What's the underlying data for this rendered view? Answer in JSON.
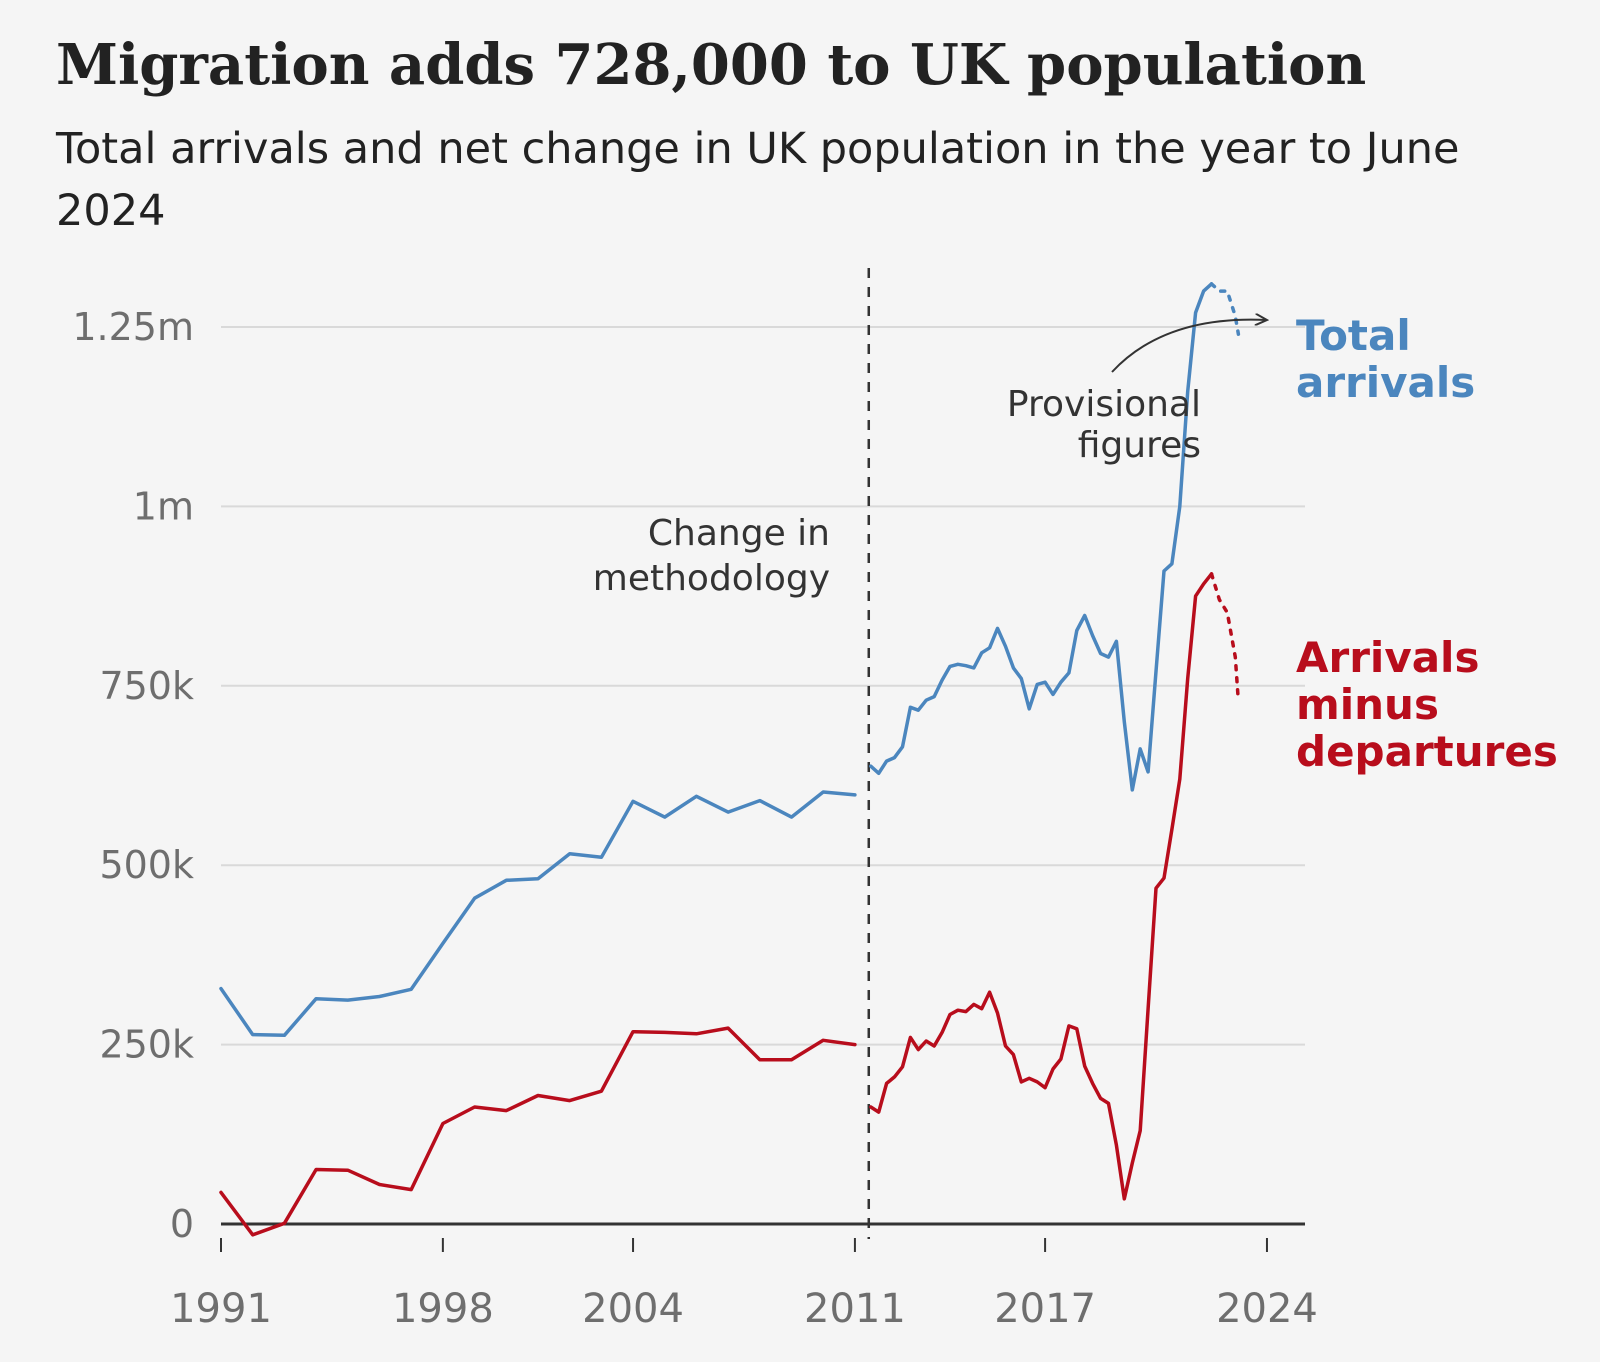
{
  "header": {
    "title": "Migration adds 728,000 to UK population",
    "subtitle": "Total arrivals and net change in UK population in the year to June 2024"
  },
  "annotations": {
    "methodology": [
      "Change in",
      "methodology"
    ],
    "provisional": [
      "Provisional",
      "figures"
    ]
  },
  "colors": {
    "arrivals": "#4b86be",
    "net": "#b80d1c",
    "grid": "#d9d9d9",
    "axis": "#333333",
    "background": "#f5f5f5"
  },
  "chart_data": {
    "type": "line",
    "title": "Migration adds 728,000 to UK population",
    "subtitle": "Total arrivals and net change in UK population in the year to June 2024",
    "xlabel": "",
    "ylabel": "",
    "xlim": [
      1991,
      2025.2
    ],
    "ylim": [
      0,
      1250000
    ],
    "xticks": [
      1991,
      1998,
      2004,
      2011,
      2017,
      2024
    ],
    "xtick_labels": [
      "1991",
      "1998",
      "2004",
      "2011",
      "2017",
      "2024"
    ],
    "yticks": [
      0,
      250000,
      500000,
      750000,
      1000000,
      1250000
    ],
    "ytick_labels": [
      "0",
      "250k",
      "500k",
      "750k",
      "1m",
      "1.25m"
    ],
    "grid": true,
    "methodology_break_x": 2011.5,
    "series": [
      {
        "name": "Total arrivals",
        "legend_lines": [
          "Total",
          "arrivals"
        ],
        "color": "#4b86be",
        "segments": [
          {
            "style": "solid",
            "points": [
              [
                1991,
                328000
              ],
              [
                1992,
                264000
              ],
              [
                1993,
                263000
              ],
              [
                1994,
                314000
              ],
              [
                1995,
                312000
              ],
              [
                1996,
                317000
              ],
              [
                1997,
                327000
              ],
              [
                1998,
                391000
              ],
              [
                1999,
                454000
              ],
              [
                2000,
                479000
              ],
              [
                2001,
                481000
              ],
              [
                2002,
                516000
              ],
              [
                2003,
                511000
              ],
              [
                2004,
                589000
              ],
              [
                2005,
                567000
              ],
              [
                2006,
                596000
              ],
              [
                2007,
                574000
              ],
              [
                2008,
                590000
              ],
              [
                2009,
                567000
              ],
              [
                2010,
                602000
              ],
              [
                2011,
                598000
              ]
            ]
          },
          {
            "style": "solid",
            "points": [
              [
                2011.5,
                638000
              ],
              [
                2011.75,
                628000
              ],
              [
                2012,
                645000
              ],
              [
                2012.25,
                650000
              ],
              [
                2012.5,
                665000
              ],
              [
                2012.75,
                720000
              ],
              [
                2013,
                716000
              ],
              [
                2013.25,
                730000
              ],
              [
                2013.5,
                735000
              ],
              [
                2013.75,
                758000
              ],
              [
                2014,
                777000
              ],
              [
                2014.25,
                780000
              ],
              [
                2014.5,
                778000
              ],
              [
                2014.75,
                775000
              ],
              [
                2015,
                796000
              ],
              [
                2015.25,
                803000
              ],
              [
                2015.5,
                830000
              ],
              [
                2015.75,
                805000
              ],
              [
                2016,
                775000
              ],
              [
                2016.25,
                760000
              ],
              [
                2016.5,
                718000
              ],
              [
                2016.75,
                752000
              ],
              [
                2017,
                755000
              ],
              [
                2017.25,
                738000
              ],
              [
                2017.5,
                755000
              ],
              [
                2017.75,
                768000
              ],
              [
                2018,
                827000
              ],
              [
                2018.25,
                848000
              ],
              [
                2018.5,
                820000
              ],
              [
                2018.75,
                795000
              ],
              [
                2019,
                790000
              ],
              [
                2019.25,
                812000
              ],
              [
                2019.5,
                700000
              ],
              [
                2019.75,
                605000
              ],
              [
                2020,
                662000
              ],
              [
                2020.25,
                630000
              ],
              [
                2020.5,
                770000
              ],
              [
                2020.75,
                910000
              ],
              [
                2021,
                920000
              ],
              [
                2021.25,
                1000000
              ],
              [
                2021.5,
                1160000
              ],
              [
                2021.75,
                1270000
              ],
              [
                2022,
                1300000
              ],
              [
                2022.25,
                1310000
              ]
            ]
          },
          {
            "style": "dotted",
            "points": [
              [
                2022.25,
                1310000
              ],
              [
                2022.5,
                1300000
              ],
              [
                2022.75,
                1300000
              ],
              [
                2023,
                1265000
              ],
              [
                2023.1,
                1240000
              ]
            ]
          }
        ]
      },
      {
        "name": "Arrivals minus departures",
        "legend_lines": [
          "Arrivals",
          "minus",
          "departures"
        ],
        "color": "#b80d1c",
        "segments": [
          {
            "style": "solid",
            "points": [
              [
                1991,
                44000
              ],
              [
                1992,
                -15000
              ],
              [
                1993,
                1000
              ],
              [
                1994,
                76000
              ],
              [
                1995,
                75000
              ],
              [
                1996,
                55000
              ],
              [
                1997,
                48000
              ],
              [
                1998,
                140000
              ],
              [
                1999,
                163000
              ],
              [
                2000,
                158000
              ],
              [
                2001,
                179000
              ],
              [
                2002,
                172000
              ],
              [
                2003,
                185000
              ],
              [
                2004,
                268000
              ],
              [
                2005,
                267000
              ],
              [
                2006,
                265000
              ],
              [
                2007,
                273000
              ],
              [
                2008,
                229000
              ],
              [
                2009,
                229000
              ],
              [
                2010,
                256000
              ],
              [
                2011,
                250000
              ]
            ]
          },
          {
            "style": "solid",
            "points": [
              [
                2011.5,
                163000
              ],
              [
                2011.75,
                156000
              ],
              [
                2012,
                196000
              ],
              [
                2012.25,
                205000
              ],
              [
                2012.5,
                219000
              ],
              [
                2012.75,
                260000
              ],
              [
                2013,
                243000
              ],
              [
                2013.25,
                255000
              ],
              [
                2013.5,
                248000
              ],
              [
                2013.75,
                267000
              ],
              [
                2014,
                292000
              ],
              [
                2014.25,
                298000
              ],
              [
                2014.5,
                296000
              ],
              [
                2014.75,
                306000
              ],
              [
                2015,
                300000
              ],
              [
                2015.25,
                323000
              ],
              [
                2015.5,
                294000
              ],
              [
                2015.75,
                248000
              ],
              [
                2016,
                236000
              ],
              [
                2016.25,
                198000
              ],
              [
                2016.5,
                203000
              ],
              [
                2016.75,
                198000
              ],
              [
                2017,
                190000
              ],
              [
                2017.25,
                216000
              ],
              [
                2017.5,
                230000
              ],
              [
                2017.75,
                276000
              ],
              [
                2018,
                272000
              ],
              [
                2018.25,
                220000
              ],
              [
                2018.5,
                196000
              ],
              [
                2018.75,
                175000
              ],
              [
                2019,
                168000
              ],
              [
                2019.25,
                110000
              ],
              [
                2019.5,
                35000
              ],
              [
                2019.75,
                85000
              ],
              [
                2020,
                130000
              ],
              [
                2020.25,
                300000
              ],
              [
                2020.5,
                468000
              ],
              [
                2020.75,
                482000
              ],
              [
                2021,
                550000
              ],
              [
                2021.25,
                620000
              ],
              [
                2021.5,
                760000
              ],
              [
                2021.75,
                875000
              ],
              [
                2022,
                892000
              ],
              [
                2022.25,
                906000
              ]
            ]
          },
          {
            "style": "dotted",
            "points": [
              [
                2022.25,
                906000
              ],
              [
                2022.5,
                870000
              ],
              [
                2022.75,
                852000
              ],
              [
                2023,
                790000
              ],
              [
                2023.1,
                728000
              ]
            ]
          }
        ]
      }
    ]
  }
}
